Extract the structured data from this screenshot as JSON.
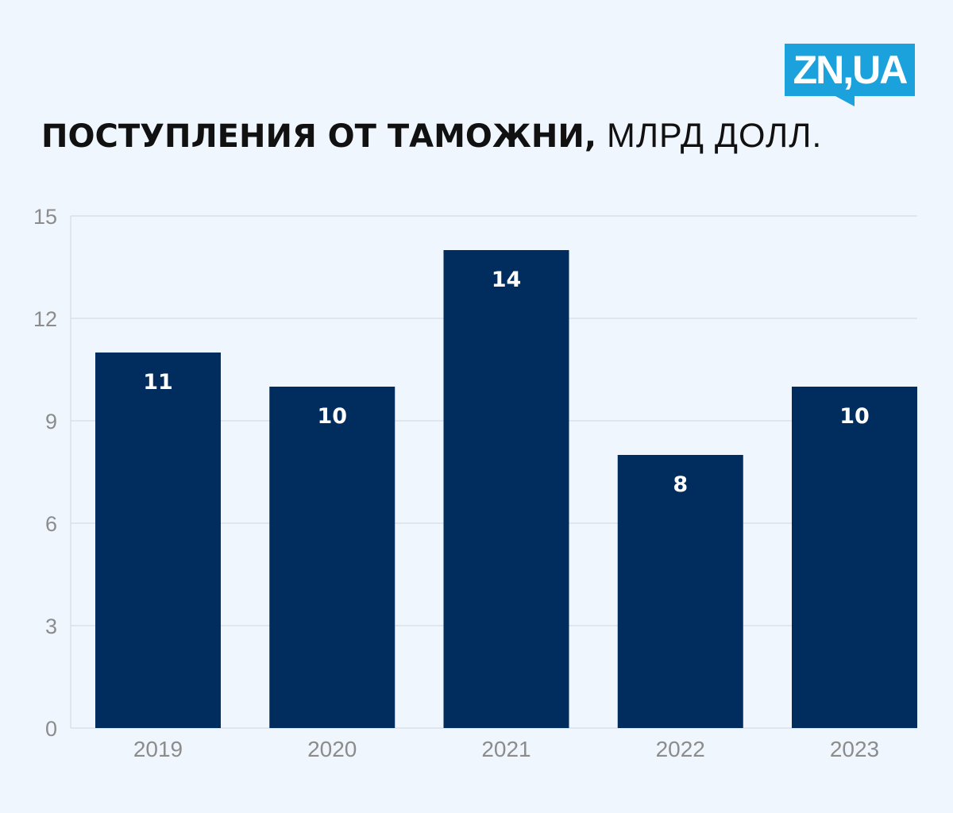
{
  "logo": {
    "text": "ZN,UA",
    "color": "#1ba1dc"
  },
  "title": {
    "main": "ПОСТУПЛЕНИЯ ОТ ТАМОЖНИ,",
    "unit": " МЛРД ДОЛЛ."
  },
  "colors": {
    "background": "#eff6fd",
    "bar": "#002c5e",
    "grid": "#cfd6e0",
    "tick_label": "#8c8c8c",
    "data_label": "#ffffff"
  },
  "chart_data": {
    "type": "bar",
    "categories": [
      "2019",
      "2020",
      "2021",
      "2022",
      "2023"
    ],
    "values": [
      11,
      10,
      14,
      8,
      10
    ],
    "data_labels": [
      "11",
      "10",
      "14",
      "8",
      "10"
    ],
    "title": "ПОСТУПЛЕНИЯ ОТ ТАМОЖНИ, МЛРД ДОЛЛ.",
    "xlabel": "",
    "ylabel": "",
    "ylim": [
      0,
      15
    ],
    "yticks": [
      0,
      3,
      6,
      9,
      12,
      15
    ],
    "grid": true,
    "legend": "none"
  }
}
